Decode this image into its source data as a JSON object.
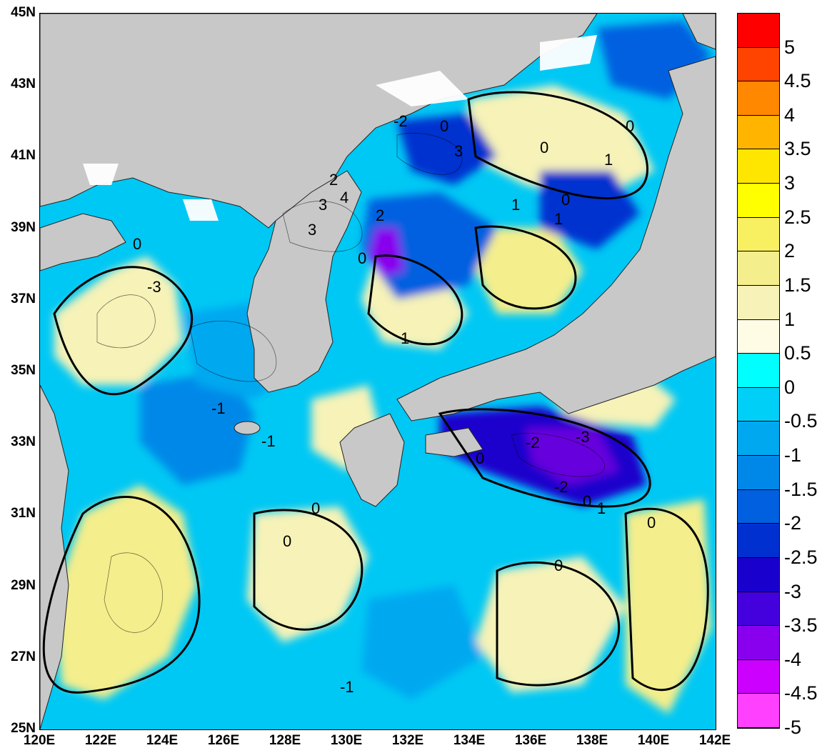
{
  "map": {
    "lat_labels": [
      "45N",
      "43N",
      "41N",
      "39N",
      "37N",
      "35N",
      "33N",
      "31N",
      "29N",
      "27N",
      "25N"
    ],
    "lon_labels": [
      "120E",
      "122E",
      "124E",
      "126E",
      "128E",
      "130E",
      "132E",
      "134E",
      "136E",
      "138E",
      "140E",
      "142E"
    ],
    "lat_range": [
      25,
      45
    ],
    "lon_range": [
      120,
      142
    ],
    "colors": {
      "land": "#c8c8c8",
      "coast_stroke": "#222222",
      "positive_band": "#f6f2b8",
      "zero_contour": "#000000"
    },
    "contour_labels": [
      "-2",
      "0",
      "0",
      "0",
      "2",
      "3",
      "4",
      "3",
      "2",
      "1",
      "3",
      "1",
      "0",
      "1",
      "0",
      "1",
      "0",
      "-3",
      "-2",
      "-3",
      "-2",
      "0",
      "-1",
      "0",
      "0",
      "-1",
      "1",
      "0",
      "0",
      "0",
      "-1"
    ]
  },
  "colorbar": {
    "colors": [
      "#ff0000",
      "#ff4400",
      "#ff8800",
      "#ffb400",
      "#ffe600",
      "#ffff00",
      "#f8f060",
      "#f4ee8c",
      "#f6f2b8",
      "#fffce6",
      "#00ffff",
      "#00d0f8",
      "#00a8f0",
      "#0088e8",
      "#0060e0",
      "#0030d0",
      "#1a00cc",
      "#4400dd",
      "#8800ee",
      "#cc00ff",
      "#ff40ff"
    ],
    "labels": [
      "5",
      "4.5",
      "4",
      "3.5",
      "3",
      "2.5",
      "2",
      "1.5",
      "1",
      "0.5",
      "0",
      "-0.5",
      "-1",
      "-1.5",
      "-2",
      "-2.5",
      "-3",
      "-3.5",
      "-4",
      "-4.5",
      "-5"
    ]
  }
}
